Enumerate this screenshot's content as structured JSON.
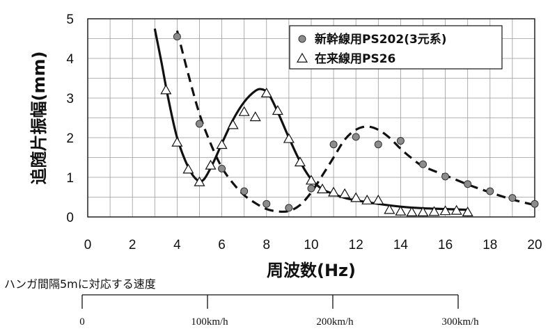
{
  "chart_data": {
    "type": "scatter",
    "xlabel": "周波数(Hz)",
    "ylabel": "追随片振幅(mm)",
    "xlim": [
      0,
      20
    ],
    "ylim": [
      0,
      5
    ],
    "x_ticks": [
      "0",
      "2",
      "4",
      "6",
      "8",
      "10",
      "12",
      "14",
      "16",
      "18",
      "20"
    ],
    "y_ticks": [
      "0",
      "1",
      "2",
      "3",
      "4",
      "5"
    ],
    "grid": true,
    "legend_position": "top-right",
    "series": [
      {
        "name": "新幹線用PS202(3元系)",
        "marker": "circle",
        "color": "#8c8c8c",
        "points": [
          [
            4.0,
            4.55
          ],
          [
            5.0,
            2.35
          ],
          [
            6.0,
            1.22
          ],
          [
            7.0,
            0.65
          ],
          [
            8.0,
            0.33
          ],
          [
            9.0,
            0.23
          ],
          [
            10.0,
            0.72
          ],
          [
            11.0,
            1.83
          ],
          [
            12.0,
            2.02
          ],
          [
            13.0,
            1.83
          ],
          [
            14.0,
            1.92
          ],
          [
            15.0,
            1.33
          ],
          [
            16.0,
            1.02
          ],
          [
            17.0,
            0.83
          ],
          [
            18.0,
            0.65
          ],
          [
            19.0,
            0.48
          ],
          [
            20.0,
            0.33
          ]
        ],
        "fit_style": "dashed",
        "fit_curve": [
          [
            4.0,
            4.7
          ],
          [
            4.5,
            3.6
          ],
          [
            5.0,
            2.6
          ],
          [
            5.5,
            1.85
          ],
          [
            6.0,
            1.25
          ],
          [
            6.5,
            0.85
          ],
          [
            7.0,
            0.55
          ],
          [
            7.5,
            0.35
          ],
          [
            8.0,
            0.2
          ],
          [
            8.5,
            0.14
          ],
          [
            9.0,
            0.15
          ],
          [
            9.5,
            0.3
          ],
          [
            10.0,
            0.62
          ],
          [
            10.5,
            1.05
          ],
          [
            11.0,
            1.5
          ],
          [
            11.5,
            1.95
          ],
          [
            12.0,
            2.2
          ],
          [
            12.5,
            2.28
          ],
          [
            13.0,
            2.2
          ],
          [
            13.5,
            2.0
          ],
          [
            14.0,
            1.72
          ],
          [
            14.5,
            1.48
          ],
          [
            15.0,
            1.28
          ],
          [
            16.0,
            1.05
          ],
          [
            17.0,
            0.82
          ],
          [
            18.0,
            0.62
          ],
          [
            19.0,
            0.44
          ],
          [
            20.0,
            0.3
          ]
        ]
      },
      {
        "name": "在来線用PS26",
        "marker": "triangle",
        "color": "#111111",
        "points": [
          [
            3.5,
            3.2
          ],
          [
            4.0,
            1.88
          ],
          [
            4.5,
            1.2
          ],
          [
            5.0,
            0.88
          ],
          [
            5.5,
            1.3
          ],
          [
            6.0,
            1.82
          ],
          [
            6.5,
            2.32
          ],
          [
            7.0,
            2.65
          ],
          [
            7.5,
            2.52
          ],
          [
            8.0,
            3.12
          ],
          [
            8.5,
            2.68
          ],
          [
            9.0,
            1.97
          ],
          [
            9.5,
            1.38
          ],
          [
            10.0,
            0.92
          ],
          [
            10.5,
            0.7
          ],
          [
            11.0,
            0.62
          ],
          [
            11.5,
            0.58
          ],
          [
            12.0,
            0.48
          ],
          [
            12.5,
            0.42
          ],
          [
            13.0,
            0.42
          ],
          [
            13.5,
            0.18
          ],
          [
            14.0,
            0.14
          ],
          [
            14.5,
            0.12
          ],
          [
            15.0,
            0.12
          ],
          [
            15.5,
            0.13
          ],
          [
            16.0,
            0.15
          ],
          [
            16.5,
            0.16
          ],
          [
            17.0,
            0.12
          ]
        ],
        "fit_style": "solid",
        "fit_curve": [
          [
            3.0,
            4.75
          ],
          [
            3.3,
            3.9
          ],
          [
            3.6,
            3.0
          ],
          [
            4.0,
            2.0
          ],
          [
            4.5,
            1.25
          ],
          [
            4.9,
            0.93
          ],
          [
            5.2,
            0.95
          ],
          [
            5.6,
            1.35
          ],
          [
            6.0,
            1.85
          ],
          [
            6.5,
            2.45
          ],
          [
            7.0,
            2.9
          ],
          [
            7.5,
            3.18
          ],
          [
            7.8,
            3.22
          ],
          [
            8.1,
            3.1
          ],
          [
            8.5,
            2.65
          ],
          [
            9.0,
            2.0
          ],
          [
            9.5,
            1.4
          ],
          [
            10.0,
            0.95
          ],
          [
            10.5,
            0.7
          ],
          [
            11.0,
            0.58
          ],
          [
            11.5,
            0.48
          ],
          [
            12.0,
            0.42
          ],
          [
            13.0,
            0.33
          ],
          [
            14.0,
            0.26
          ],
          [
            15.0,
            0.22
          ],
          [
            16.0,
            0.2
          ],
          [
            17.0,
            0.18
          ]
        ]
      }
    ]
  },
  "speed_scale": {
    "title": "ハンガ間隔5mに対応する速度",
    "ticks": [
      {
        "label": "0",
        "hz": 0
      },
      {
        "label": "100km/h",
        "hz": 5.556
      },
      {
        "label": "200km/h",
        "hz": 11.111
      },
      {
        "label": "300km/h",
        "hz": 16.667
      }
    ]
  }
}
